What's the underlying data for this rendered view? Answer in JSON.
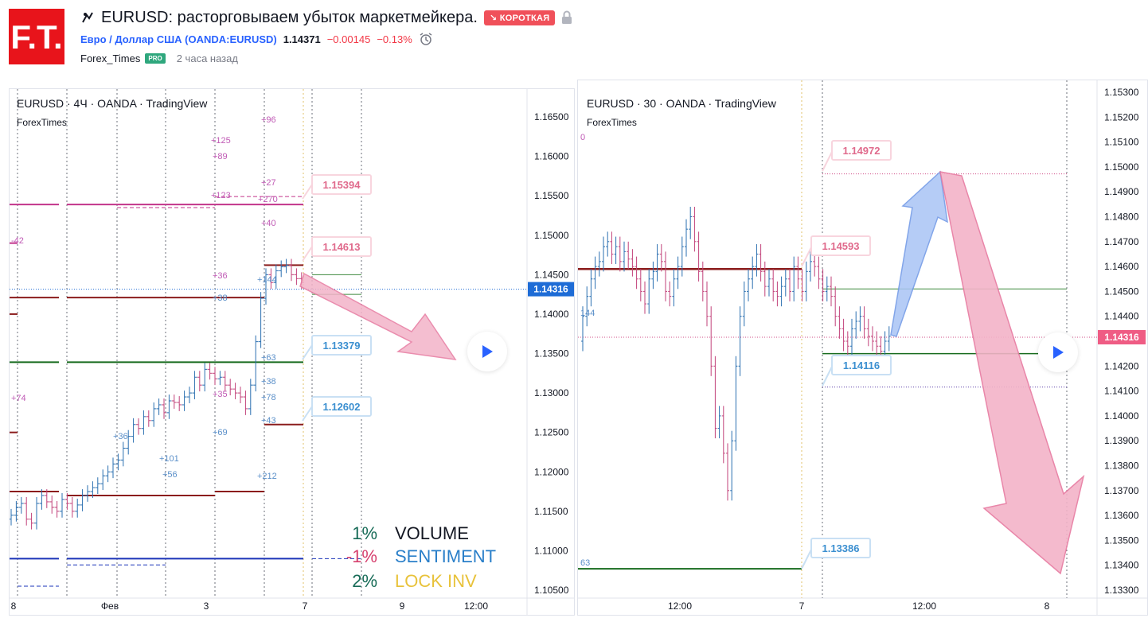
{
  "header": {
    "logo_text": "F.T.",
    "idea_title": "EURUSD: расторговываем убыток маркетмейкера.",
    "direction_badge": "↘ КОРОТКАЯ",
    "symbol_link": "Евро / Доллар США (OANDA:EURUSD)",
    "last_price": "1.14371",
    "change": "−0.00145",
    "change_pct": "−0.13%",
    "author": "Forex_Times",
    "author_badge": "PRO",
    "time_ago": "2 часа назад"
  },
  "colors": {
    "up": "#2a6fb0",
    "down": "#c2427a",
    "short_badge": "#f0505a",
    "link": "#2962ff",
    "price_tag_left": "#1e6cd6",
    "price_tag_right": "#ef5c84",
    "level_dark_red": "#8b1c1c",
    "level_green": "#176b1e",
    "level_blue": "#1a33b8",
    "level_magenta": "#c2358b"
  },
  "left_chart": {
    "title": "EURUSD · 4Ч · OANDA · TradingView",
    "subtitle": "ForexTimes",
    "current_price_tag": "1.14316",
    "y_ticks": [
      "1.16500",
      "1.16000",
      "1.15500",
      "1.15000",
      "1.14500",
      "1.14000",
      "1.13500",
      "1.13000",
      "1.12500",
      "1.12000",
      "1.11500",
      "1.11000",
      "1.10500"
    ],
    "x_ticks": [
      "8",
      "Фев",
      "3",
      "7",
      "9",
      "12:00"
    ],
    "callouts": [
      "1.15394",
      "1.14613",
      "1.13379",
      "1.12602"
    ],
    "level_labels": [
      "+96",
      "+125",
      "+89",
      "+27",
      "+123",
      "+270",
      "+40",
      "-42",
      "+36",
      "+144",
      "+38",
      "+63",
      "+74",
      "+38",
      "+35",
      "+78",
      "+43",
      "+69",
      "+36",
      "+101",
      "+56",
      "+212"
    ],
    "legend": [
      {
        "pct": "1%",
        "label": "VOLUME",
        "pct_color": "#176b57",
        "label_color": "#131722"
      },
      {
        "pct": "-1%",
        "label": "SENTIMENT",
        "pct_color": "#d6406e",
        "label_color": "#2a7fc9"
      },
      {
        "pct": "2%",
        "label": "LOCK INV",
        "pct_color": "#176b57",
        "label_color": "#e8c23a"
      }
    ]
  },
  "right_chart": {
    "title": "EURUSD · 30 · OANDA · TradingView",
    "subtitle": "ForexTimes",
    "current_price_tag": "1.14316",
    "y_ticks": [
      "1.15300",
      "1.15200",
      "1.15100",
      "1.15000",
      "1.14900",
      "1.14800",
      "1.14700",
      "1.14600",
      "1.14500",
      "1.14400",
      "1.14300",
      "1.14200",
      "1.14100",
      "1.14000",
      "1.13900",
      "1.13800",
      "1.13700",
      "1.13600",
      "1.13500",
      "1.13400",
      "1.13300"
    ],
    "x_ticks": [
      "12:00",
      "7",
      "12:00",
      "8"
    ],
    "callouts": [
      "1.14972",
      "1.14593",
      "1.14116",
      "1.13386"
    ],
    "level_labels": [
      "0",
      "144",
      "63"
    ]
  }
}
